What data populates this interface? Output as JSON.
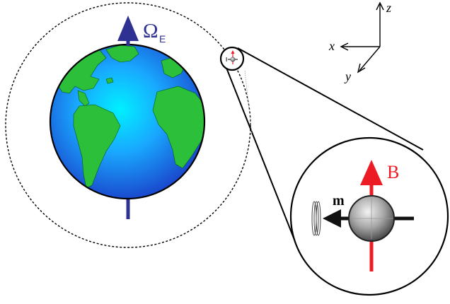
{
  "labels": {
    "omega": "Ω",
    "omega_sub": "E",
    "axis_z": "z",
    "axis_x": "x",
    "axis_y": "y",
    "field": "B",
    "moment": "m"
  },
  "colors": {
    "rotation_axis": "#2e3192",
    "field_arrow": "#ed1c24",
    "moment_arrow": "#111111",
    "ocean_center": "#00e5ff",
    "ocean_edge": "#1a4fd6",
    "land": "#2bbf3a",
    "orbit": "#000000"
  },
  "icons": {
    "earth": "earth-globe-icon",
    "satellite": "magnetized-sphere-icon",
    "coil": "pickup-coil-icon"
  }
}
